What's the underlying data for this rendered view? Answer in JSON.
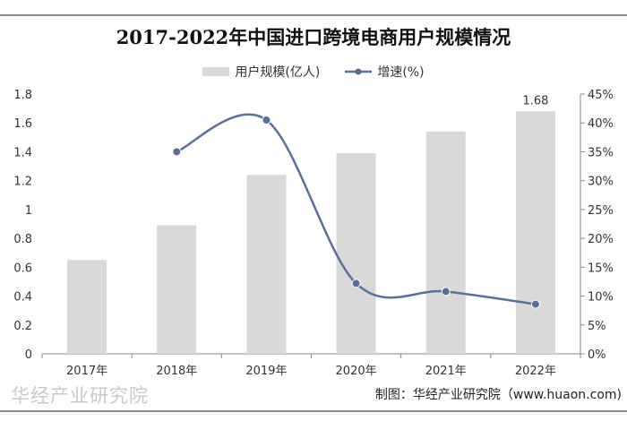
{
  "chart_data": {
    "type": "bar+line",
    "title": "2017-2022年中国进口跨境电商用户规模情况",
    "categories": [
      "2017年",
      "2018年",
      "2019年",
      "2020年",
      "2021年",
      "2022年"
    ],
    "series": [
      {
        "name": "用户规模(亿人)",
        "type": "bar",
        "axis": "left",
        "values": [
          0.65,
          0.89,
          1.24,
          1.39,
          1.54,
          1.68
        ],
        "color": "#d9d9d9"
      },
      {
        "name": "增速(%)",
        "type": "line",
        "axis": "right",
        "values": [
          null,
          35,
          40.5,
          12.2,
          10.8,
          8.6
        ],
        "color": "#5a6f9a"
      }
    ],
    "data_labels": [
      {
        "category": "2022年",
        "text": "1.68"
      }
    ],
    "yleft": {
      "ylim": [
        0,
        1.8
      ],
      "ticks": [
        "0",
        "0.2",
        "0.4",
        "0.6",
        "0.8",
        "1",
        "1.2",
        "1.4",
        "1.6",
        "1.8"
      ]
    },
    "yright": {
      "ylim": [
        0,
        45
      ],
      "ticks": [
        "0%",
        "5%",
        "10%",
        "15%",
        "20%",
        "25%",
        "30%",
        "35%",
        "40%",
        "45%"
      ]
    },
    "grid": false,
    "legend_placement": "top"
  },
  "footer": {
    "watermark": "华经产业研究院",
    "source": "制图：华经产业研究院（www.huaon.com)"
  }
}
